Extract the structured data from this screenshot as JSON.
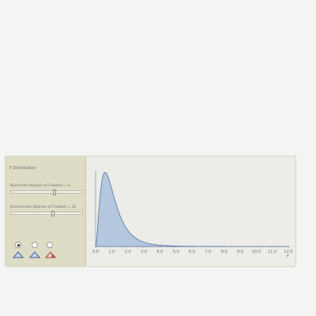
{
  "panel": {
    "title": "F Distribution",
    "numerator_label": "Numerator Degrees of Freedom = 6",
    "numerator_df": 6,
    "denominator_label": "Denominator Degrees of Freedom = 16",
    "denominator_df": 16
  },
  "radios": [
    {
      "checked": true
    },
    {
      "checked": false
    },
    {
      "checked": false
    }
  ],
  "icons": [
    "blue-curve-icon",
    "blue-curve-icon",
    "red-shaded-curve-icon"
  ],
  "colors": {
    "curve_fill": "#b5c7df",
    "curve_stroke": "#5472a8",
    "panel_bg": "#dedcc4",
    "red_shade": "#c0473a"
  },
  "chart_data": {
    "type": "area",
    "distribution": "F",
    "df1": 6,
    "df2": 16,
    "xlim": [
      0,
      12
    ],
    "xticks": [
      "0.0",
      "1.0",
      "2.0",
      "3.0",
      "4.0",
      "5.0",
      "6.0",
      "7.0",
      "8.0",
      "9.0",
      "10.0",
      "11.0",
      "12.0"
    ],
    "xlabel": "F",
    "ylim": [
      0,
      0.75
    ]
  }
}
